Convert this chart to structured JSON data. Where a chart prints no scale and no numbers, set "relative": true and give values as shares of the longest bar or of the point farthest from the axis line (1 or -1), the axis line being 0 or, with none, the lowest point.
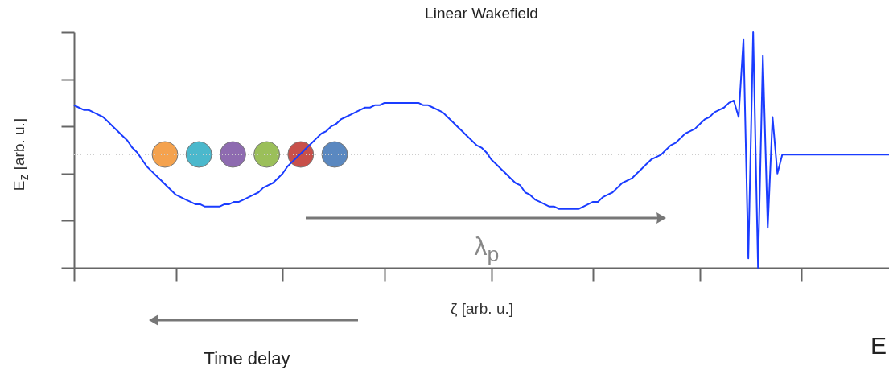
{
  "chart_data": {
    "type": "line",
    "title": "Linear Wakefield",
    "xlabel": "ζ [arb. u.]",
    "ylabel": "E$_{z}$ [arb. u.]",
    "relative": true,
    "tick_labels": false,
    "grid": false,
    "categories": [
      null,
      null,
      null,
      null,
      null,
      null,
      null,
      null,
      null,
      null,
      null,
      null,
      null,
      null,
      null,
      null,
      null,
      null,
      null,
      null,
      null,
      null,
      null,
      null,
      null,
      null,
      null,
      null,
      null,
      null,
      null,
      null,
      null,
      null,
      null,
      null,
      null,
      null,
      null,
      null,
      null,
      null,
      null,
      null,
      null,
      null,
      null,
      null,
      null,
      null,
      null,
      null,
      null,
      null,
      null,
      null,
      null,
      null,
      null,
      null,
      null,
      null,
      null,
      null,
      null,
      null,
      null,
      null,
      null,
      null,
      null,
      null,
      null,
      null,
      null,
      null,
      null,
      null,
      null,
      null,
      null,
      null,
      null,
      null,
      null,
      null,
      null,
      null,
      null,
      null,
      null,
      null,
      null,
      null,
      null,
      null,
      null,
      null,
      null,
      null,
      null,
      null,
      null,
      null,
      null,
      null,
      null,
      null,
      null,
      null,
      null,
      null,
      null,
      null,
      null,
      null,
      null,
      null,
      null,
      null,
      null,
      null,
      null,
      null,
      null,
      null,
      null,
      null,
      null,
      null,
      null,
      null,
      null,
      null,
      null,
      null,
      null,
      null,
      null,
      null,
      null,
      null,
      null,
      null,
      null,
      null,
      null,
      null,
      null,
      null,
      null,
      null,
      null,
      null,
      null,
      null,
      null,
      null,
      null,
      null,
      null,
      null,
      null,
      null,
      null,
      null,
      null,
      null,
      null
    ],
    "ref_lines": [
      {
        "axis": "y",
        "value": 0.48,
        "label": null,
        "color": "#cccccc",
        "line_style": "dotted"
      }
    ],
    "annotations": [
      "λ$_{p}$",
      "Time delay",
      "E"
    ],
    "series": [
      {
        "color": "#1a3cff",
        "line_style": "solid",
        "values": [
          0.69,
          0.68,
          0.67,
          0.67,
          0.66,
          0.65,
          0.64,
          0.62,
          0.6,
          0.58,
          0.56,
          0.54,
          0.51,
          0.49,
          0.46,
          0.43,
          0.41,
          0.39,
          0.37,
          0.35,
          0.33,
          0.31,
          0.3,
          0.29,
          0.28,
          0.27,
          0.27,
          0.26,
          0.26,
          0.26,
          0.26,
          0.27,
          0.27,
          0.28,
          0.28,
          0.29,
          0.3,
          0.31,
          0.32,
          0.34,
          0.35,
          0.36,
          0.38,
          0.4,
          0.43,
          0.45,
          0.47,
          0.49,
          0.51,
          0.53,
          0.55,
          0.57,
          0.58,
          0.6,
          0.61,
          0.63,
          0.64,
          0.65,
          0.66,
          0.67,
          0.68,
          0.68,
          0.69,
          0.69,
          0.7,
          0.7,
          0.7,
          0.7,
          0.7,
          0.7,
          0.7,
          0.7,
          0.69,
          0.69,
          0.68,
          0.67,
          0.66,
          0.64,
          0.62,
          0.6,
          0.58,
          0.56,
          0.54,
          0.52,
          0.51,
          0.49,
          0.46,
          0.44,
          0.42,
          0.4,
          0.38,
          0.36,
          0.35,
          0.32,
          0.31,
          0.29,
          0.28,
          0.27,
          0.26,
          0.26,
          0.25,
          0.25,
          0.25,
          0.25,
          0.25,
          0.26,
          0.27,
          0.28,
          0.28,
          0.3,
          0.31,
          0.32,
          0.34,
          0.36,
          0.37,
          0.38,
          0.4,
          0.42,
          0.44,
          0.46,
          0.47,
          0.48,
          0.5,
          0.52,
          0.53,
          0.55,
          0.57,
          0.58,
          0.59,
          0.61,
          0.63,
          0.64,
          0.66,
          0.67,
          0.68,
          0.7,
          0.71,
          0.64,
          0.97,
          0.04,
          1.0,
          0,
          0.9,
          0.17,
          0.64,
          0.4,
          0.48,
          0.48,
          0.48,
          0.48,
          0.48,
          0.48,
          0.48,
          0.48,
          0.48,
          0.48,
          0.48,
          0.48,
          0.48,
          0.48,
          0.48,
          0.48,
          0.48,
          0.48,
          0.48,
          0.48,
          0.48,
          0.48,
          0.48
        ]
      }
    ]
  }
}
